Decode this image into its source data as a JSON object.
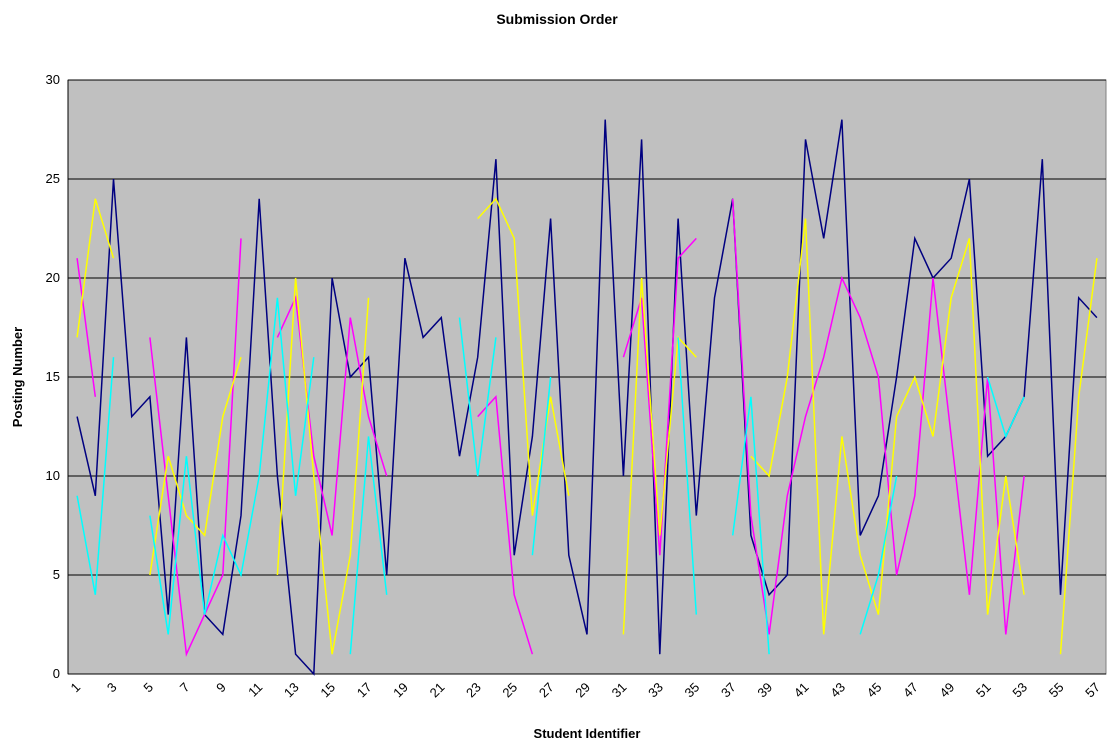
{
  "chart_data": {
    "type": "line",
    "title": "Submission Order",
    "xlabel": "Student Identifier",
    "ylabel": "Posting Number",
    "categories": [
      "1",
      null,
      "3",
      null,
      "5",
      null,
      "7",
      null,
      "9",
      null,
      "11",
      null,
      "13",
      null,
      "15",
      null,
      "17",
      null,
      "19",
      null,
      "21",
      null,
      "23",
      null,
      "25",
      null,
      "27",
      null,
      "29",
      null,
      "31",
      null,
      "33",
      null,
      "35",
      null,
      "37",
      null,
      "39",
      null,
      "41",
      null,
      "43",
      null,
      "45",
      null,
      "47",
      null,
      "49",
      null,
      "51",
      null,
      "53",
      null,
      "55",
      null,
      "57"
    ],
    "series": [
      {
        "color": "#000080",
        "values": [
          13,
          9,
          25,
          13,
          14,
          3,
          17,
          3,
          2,
          8,
          24,
          10,
          1,
          0,
          20,
          15,
          16,
          5,
          21,
          17,
          18,
          11,
          16,
          26,
          6,
          12,
          23,
          6,
          2,
          28,
          10,
          27,
          1,
          23,
          8,
          19,
          24,
          7,
          4,
          5,
          27,
          22,
          28,
          7,
          9,
          15,
          22,
          20,
          21,
          25,
          11,
          12,
          14,
          26,
          4,
          19,
          18
        ]
      },
      {
        "color": "#ff00ff",
        "values": [
          21,
          14,
          null,
          null,
          17,
          9,
          1,
          3,
          5,
          22,
          null,
          17,
          19,
          11,
          7,
          18,
          13,
          10,
          null,
          null,
          null,
          null,
          13,
          14,
          4,
          1,
          null,
          null,
          null,
          null,
          16,
          19,
          6,
          21,
          22,
          null,
          24,
          8,
          2,
          9,
          13,
          16,
          20,
          18,
          15,
          5,
          9,
          20,
          12,
          4,
          15,
          2,
          10,
          null,
          null,
          null,
          null
        ]
      },
      {
        "color": "#ffff00",
        "values": [
          17,
          24,
          21,
          null,
          5,
          11,
          8,
          7,
          13,
          16,
          null,
          5,
          20,
          10,
          1,
          6,
          19,
          null,
          null,
          null,
          null,
          null,
          23,
          24,
          22,
          8,
          14,
          9,
          null,
          null,
          2,
          20,
          7,
          17,
          16,
          null,
          null,
          11,
          10,
          15,
          23,
          2,
          12,
          6,
          3,
          13,
          15,
          12,
          19,
          22,
          3,
          10,
          4,
          null,
          1,
          14,
          21
        ]
      },
      {
        "color": "#00ffff",
        "values": [
          9,
          4,
          16,
          null,
          8,
          2,
          11,
          3,
          7,
          5,
          10,
          19,
          9,
          16,
          null,
          1,
          12,
          4,
          null,
          null,
          null,
          18,
          10,
          17,
          null,
          6,
          15,
          null,
          null,
          null,
          null,
          null,
          null,
          17,
          3,
          null,
          7,
          14,
          1,
          null,
          null,
          null,
          null,
          2,
          5,
          10,
          null,
          null,
          null,
          null,
          15,
          12,
          14,
          null,
          null,
          null,
          null
        ]
      }
    ],
    "ylim": [
      0,
      30
    ],
    "yticks": [
      0,
      5,
      10,
      15,
      20,
      25,
      30
    ],
    "grid": true,
    "background": "#c0c0c0"
  }
}
